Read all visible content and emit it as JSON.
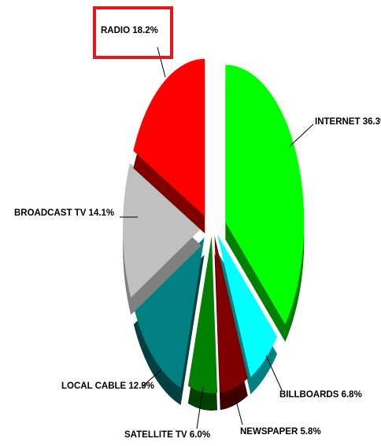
{
  "chart_data": {
    "type": "pie",
    "title": "",
    "slices": [
      {
        "label": "INTERNET",
        "value": 36.3,
        "display": "INTERNET 36.3%",
        "color": "#00ff00",
        "side": "#008000"
      },
      {
        "label": "BILLBOARDS",
        "value": 6.8,
        "display": "BILLBOARDS 6.8%",
        "color": "#00ffff",
        "side": "#008080"
      },
      {
        "label": "NEWSPAPER",
        "value": 5.8,
        "display": "NEWSPAPER 5.8%",
        "color": "#800000",
        "side": "#400000"
      },
      {
        "label": "SATELLITE TV",
        "value": 6.0,
        "display": "SATELLITE TV 6.0%",
        "color": "#008000",
        "side": "#004000"
      },
      {
        "label": "LOCAL CABLE",
        "value": 12.9,
        "display": "LOCAL CABLE 12.9%",
        "color": "#008080",
        "side": "#004040"
      },
      {
        "label": "BROADCAST TV",
        "value": 14.1,
        "display": "BROADCAST TV 14.1%",
        "color": "#c0c0c0",
        "side": "#808080"
      },
      {
        "label": "RADIO",
        "value": 18.2,
        "display": "RADIO 18.2%",
        "color": "#ff0000",
        "side": "#800000",
        "highlighted": true
      }
    ],
    "highlight_color": "#e3171c",
    "exploded": true,
    "style": "3d"
  }
}
